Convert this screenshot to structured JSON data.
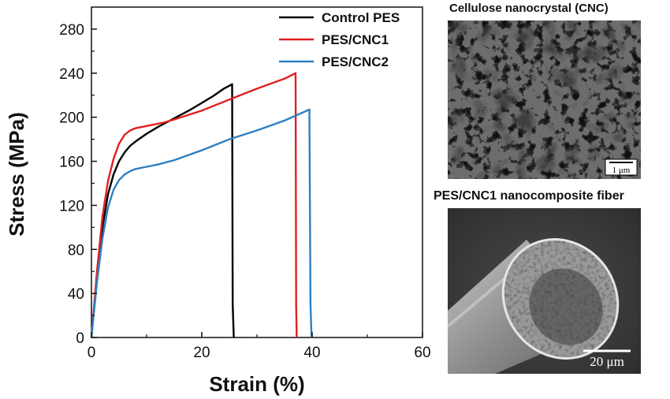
{
  "chart_data": {
    "type": "line",
    "xlabel": "Strain (%)",
    "ylabel": "Stress (MPa)",
    "xlim": [
      0,
      60
    ],
    "ylim": [
      0,
      300
    ],
    "xticks": [
      0,
      20,
      40,
      60
    ],
    "yticks": [
      0,
      40,
      80,
      120,
      160,
      200,
      240,
      280
    ],
    "legend_position": "top-right",
    "series": [
      {
        "name": "Control PES",
        "color": "#000000",
        "x": [
          0,
          0.5,
          1,
          2,
          3,
          4,
          5,
          6,
          7,
          8,
          10,
          12,
          15,
          18,
          20,
          22,
          24,
          25.5,
          25.6,
          25.8
        ],
        "y": [
          0,
          28,
          55,
          100,
          130,
          148,
          160,
          168,
          174,
          178,
          185,
          191,
          199,
          207,
          213,
          219,
          226,
          230,
          30,
          0
        ]
      },
      {
        "name": "PES/CNC1",
        "color": "#e02020",
        "x": [
          0,
          0.5,
          1,
          2,
          3,
          4,
          5,
          6,
          7,
          8,
          9,
          10,
          13,
          15,
          20,
          25,
          30,
          35,
          37,
          37.1,
          37.2
        ],
        "y": [
          0,
          30,
          60,
          110,
          142,
          162,
          176,
          184,
          188,
          190,
          191,
          192,
          195,
          198,
          206,
          216,
          226,
          235,
          240,
          30,
          0
        ]
      },
      {
        "name": "PES/CNC2",
        "color": "#2f7fc1",
        "x": [
          0,
          0.5,
          1,
          2,
          3,
          4,
          5,
          6,
          7,
          8,
          10,
          12,
          15,
          20,
          25,
          30,
          35,
          39.5,
          39.7,
          39.9
        ],
        "y": [
          0,
          25,
          50,
          90,
          118,
          134,
          143,
          148,
          151,
          153,
          155,
          157,
          161,
          170,
          180,
          188,
          197,
          207,
          30,
          0
        ]
      }
    ]
  },
  "images": {
    "top_title": "Cellulose nanocrystal (CNC)",
    "top_scale": "1 μm",
    "bottom_title": "PES/CNC1 nanocomposite fiber",
    "bottom_scale": "20 μm"
  }
}
